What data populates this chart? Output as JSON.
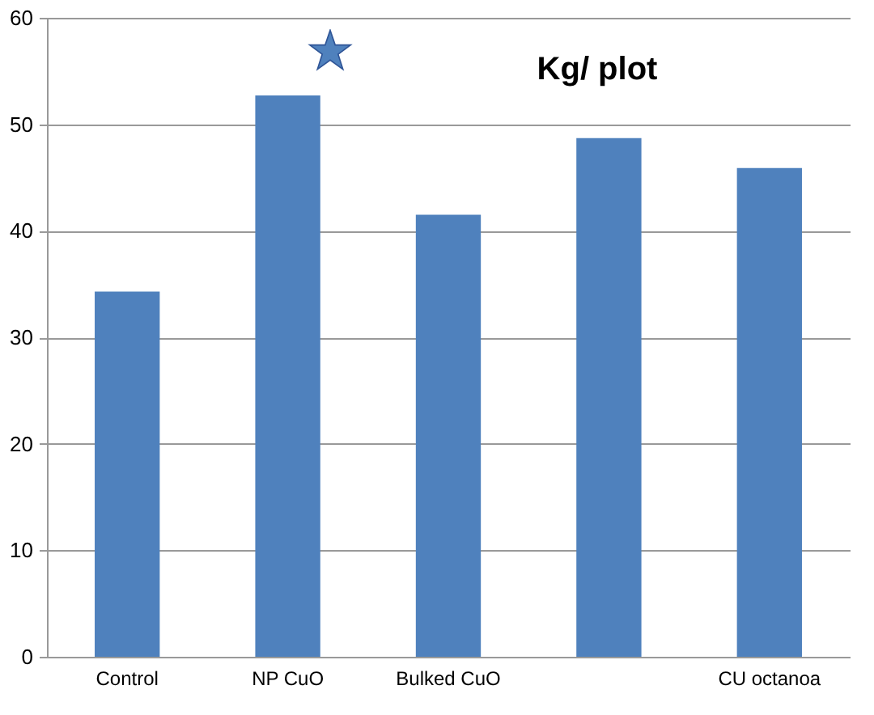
{
  "chart_data": {
    "type": "bar",
    "title": "Kg/ plot",
    "categories": [
      "Control",
      "NP CuO",
      "Bulked CuO",
      null,
      "CU octanoa"
    ],
    "values": [
      34.3,
      52.7,
      41.5,
      48.7,
      45.9
    ],
    "color": "#4f81bd",
    "ylim": [
      0,
      60
    ],
    "yticks": [
      0,
      10,
      20,
      30,
      40,
      50,
      60
    ],
    "grid": "y"
  }
}
